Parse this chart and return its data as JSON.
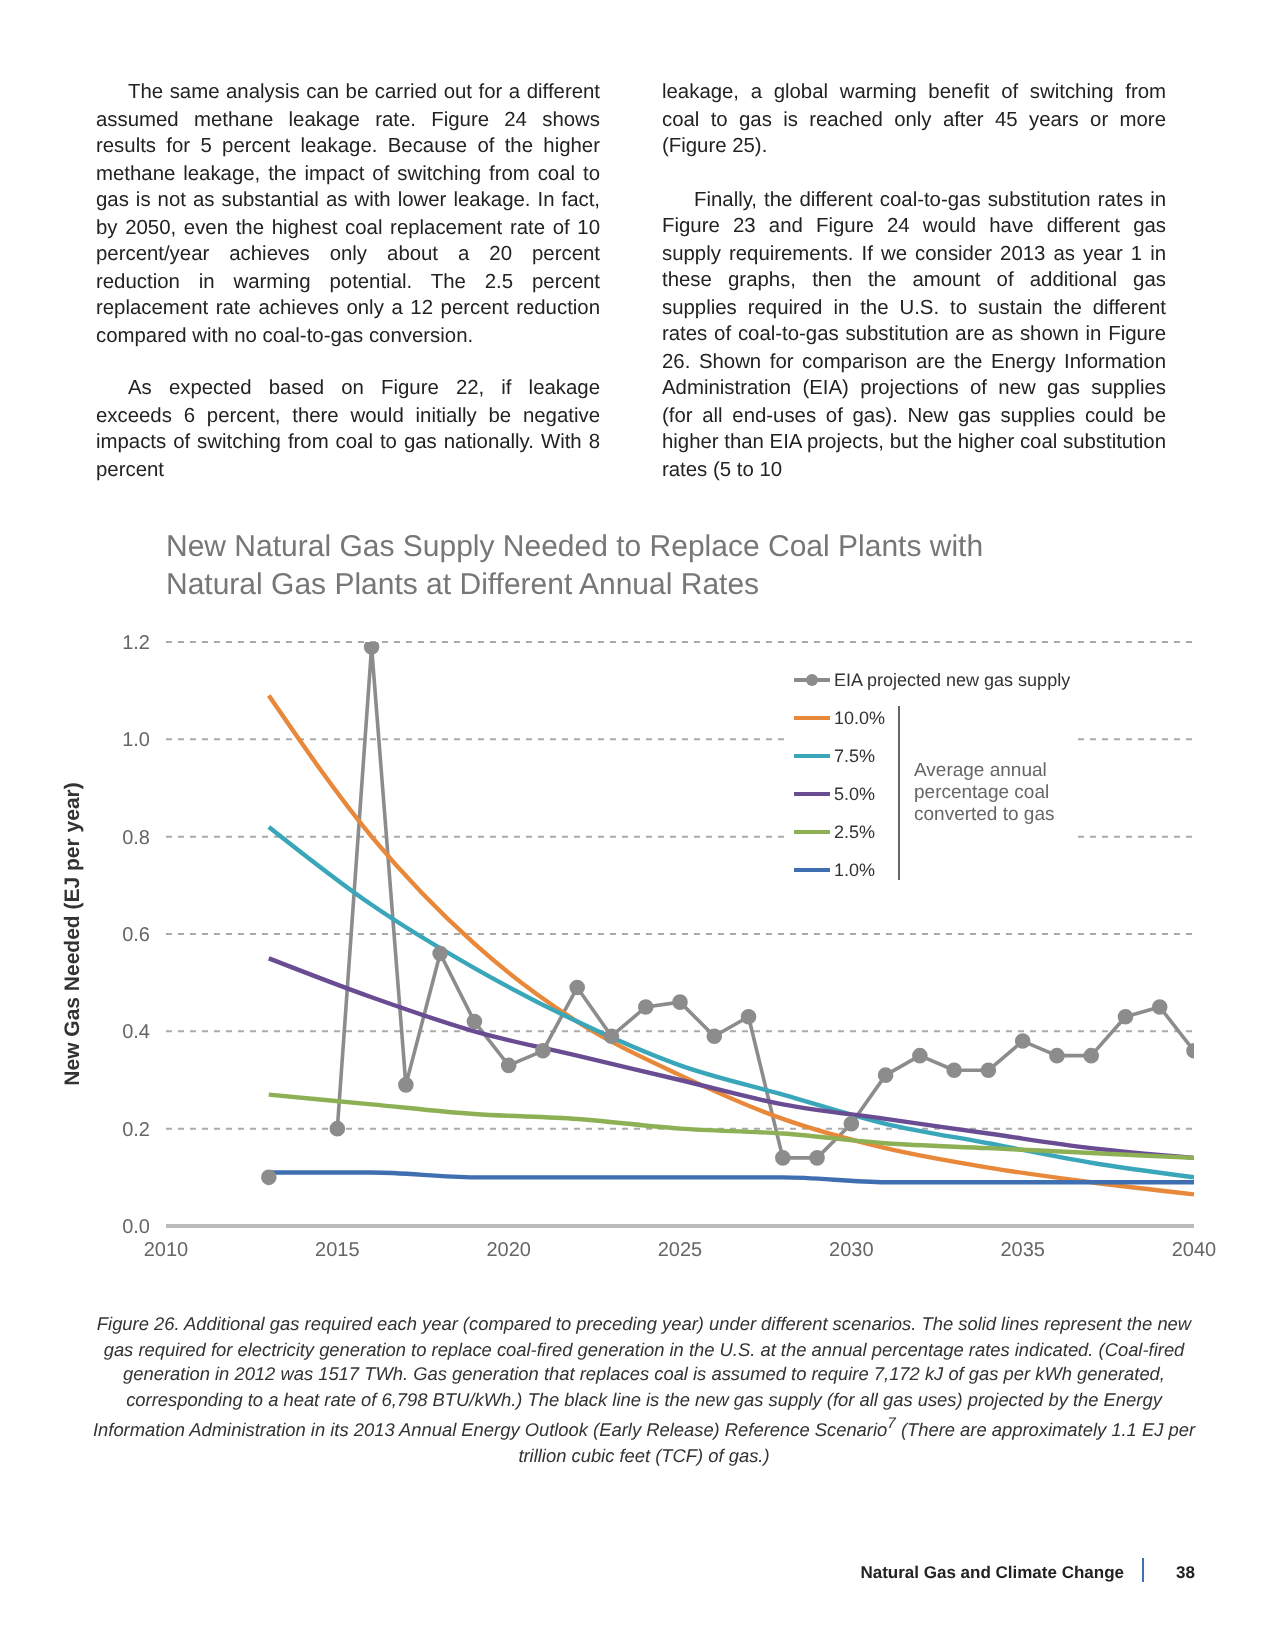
{
  "chart_data": {
    "type": "line",
    "title": "New Natural Gas Supply Needed to Replace Coal Plants with Natural Gas Plants at Different Annual Rates",
    "ylabel": "New Gas Needed (EJ per year)",
    "legend_title": "Average annual percentage coal converted to gas",
    "xlim": [
      2010,
      2040
    ],
    "xticks": [
      2010,
      2015,
      2020,
      2025,
      2030,
      2035,
      2040
    ],
    "ylim": [
      0,
      1.2
    ],
    "yticks": [
      {
        "value": 0,
        "label": "0.0"
      },
      0.2,
      0.4,
      0.6,
      0.8,
      {
        "value": 1,
        "label": "1.0"
      },
      1.2
    ],
    "grid": "y",
    "legend": "top right",
    "line_style": "solid",
    "marker": "none",
    "series": [
      {
        "name": "EIA projected new gas supply",
        "color": "#8c8c8c",
        "marker": "circle",
        "x": [
          2013,
          2014,
          2015,
          2016,
          2017,
          2018,
          2019,
          2020,
          2021,
          2022,
          2023,
          2024,
          2025,
          2026,
          2027,
          2028,
          2029,
          2030,
          2031,
          2032,
          2033,
          2034,
          2035,
          2036,
          2037,
          2038,
          2039,
          2040
        ],
        "values": [
          0.1,
          null,
          0.2,
          1.19,
          0.29,
          0.56,
          0.42,
          0.33,
          0.36,
          0.49,
          0.39,
          0.45,
          0.46,
          0.39,
          0.43,
          0.14,
          0.14,
          0.21,
          0.31,
          0.35,
          0.32,
          0.32,
          0.38,
          0.35,
          0.35,
          0.43,
          0.45,
          0.36
        ]
      },
      {
        "name": "10.0%",
        "color": "#e8883a",
        "x": [
          2013,
          2016,
          2019,
          2022,
          2025,
          2028,
          2031,
          2034,
          2037,
          2040
        ],
        "values": [
          1.09,
          0.8,
          0.58,
          0.42,
          0.31,
          0.22,
          0.16,
          0.12,
          0.09,
          0.065
        ]
      },
      {
        "name": "7.5%",
        "color": "#3aa6b9",
        "x": [
          2013,
          2016,
          2019,
          2022,
          2025,
          2028,
          2031,
          2034,
          2037,
          2040
        ],
        "values": [
          0.82,
          0.66,
          0.53,
          0.42,
          0.33,
          0.27,
          0.21,
          0.17,
          0.13,
          0.1
        ]
      },
      {
        "name": "5.0%",
        "color": "#6a4c93",
        "x": [
          2013,
          2016,
          2019,
          2022,
          2025,
          2028,
          2031,
          2034,
          2037,
          2040
        ],
        "values": [
          0.55,
          0.47,
          0.4,
          0.35,
          0.3,
          0.25,
          0.22,
          0.19,
          0.16,
          0.14
        ]
      },
      {
        "name": "2.5%",
        "color": "#8db054",
        "x": [
          2013,
          2016,
          2019,
          2022,
          2025,
          2028,
          2031,
          2034,
          2037,
          2040
        ],
        "values": [
          0.27,
          0.25,
          0.23,
          0.22,
          0.2,
          0.19,
          0.17,
          0.16,
          0.15,
          0.14
        ]
      },
      {
        "name": "1.0%",
        "color": "#3f6fb0",
        "x": [
          2013,
          2016,
          2019,
          2022,
          2025,
          2028,
          2031,
          2034,
          2037,
          2040
        ],
        "values": [
          0.11,
          0.11,
          0.1,
          0.1,
          0.1,
          0.1,
          0.09,
          0.09,
          0.09,
          0.09
        ]
      }
    ],
    "annotations": [
      "The same analysis can be carried out for a different assumed methane leakage rate. Figure 24 shows results for 5 percent leakage. Because of the higher methane leakage, the impact of switching from coal to gas is not as substantial as with lower leakage.  In fact, by 2050, even the highest coal replacement rate of 10 percent/year achieves only about a 20 percent reduction in warming potential. The 2.5 percent replacement rate achieves only a 12 percent reduction compared with no coal-to-gas conversion.",
      "As expected based on Figure 22, if leakage exceeds 6 percent, there would initially be negative impacts of switching from coal to gas nationally. With 8 percent",
      "leakage, a global warming benefit of switching from coal to gas is reached only after 45 years or more (Figure 25).",
      "Finally, the different coal-to-gas substitution rates in Figure 23 and Figure 24 would have different gas supply requirements. If we consider 2013 as year 1 in these graphs, then the amount of additional gas supplies required in the U.S. to sustain the different rates of coal-to-gas substitution are as shown in Figure 26. Shown for comparison are the Energy Information Administration (EIA) projections of new gas supplies (for all end-uses of gas). New gas supplies could be higher than EIA projects, but the higher coal substitution rates (5 to 10",
      "Figure 26. Additional gas required each year (compared to preceding year) under different scenarios. The solid lines represent the new gas required for electricity generation to replace coal-fired generation in the U.S. at the annual percentage rates indicated. (Coal-fired generation in 2012 was 1517 TWh. Gas generation that replaces coal is assumed to require 7,172 kJ of gas per kWh generated, corresponding to a heat rate of 6,798 BTU/kWh.) The black line is the new gas supply (for all gas uses) projected by the Energy Information Administration in its 2013 Annual Energy Outlook (Early Release) Reference Scenario$^{7}$ (There are approximately 1.1 EJ per trillion cubic feet (TCF) of gas.)",
      "Natural Gas and Climate Change",
      "38"
    ]
  }
}
